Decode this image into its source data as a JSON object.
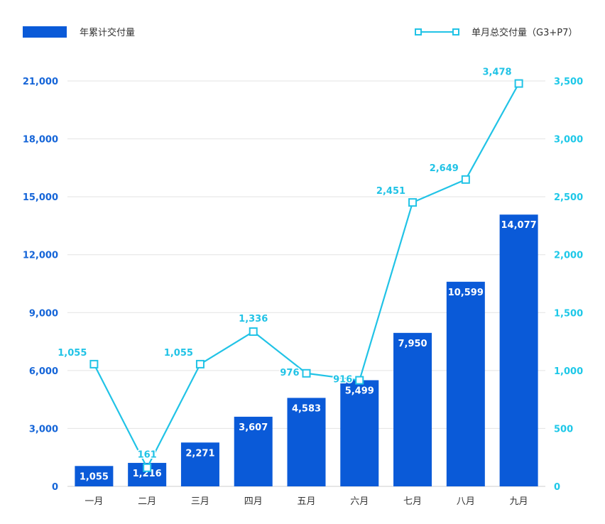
{
  "chart_data": {
    "type": "bar",
    "categories": [
      "一月",
      "二月",
      "三月",
      "四月",
      "五月",
      "六月",
      "七月",
      "八月",
      "九月"
    ],
    "series": [
      {
        "name": "年累计交付量",
        "type": "bar",
        "axis": "left",
        "values": [
          1055,
          1216,
          2271,
          3607,
          4583,
          5499,
          7950,
          10599,
          14077
        ],
        "labels": [
          "1,055",
          "1,216",
          "2,271",
          "3,607",
          "4,583",
          "5,499",
          "7,950",
          "10,599",
          "14,077"
        ]
      },
      {
        "name": "单月总交付量（G3+P7）",
        "type": "line",
        "axis": "right",
        "values": [
          1055,
          161,
          1055,
          1336,
          976,
          916,
          2451,
          2649,
          3478
        ],
        "labels": [
          "1,055",
          "161",
          "1,055",
          "1,336",
          "976",
          "916",
          "2,451",
          "2,649",
          "3,478"
        ]
      }
    ],
    "y_left": {
      "ylim": [
        0,
        21000
      ],
      "ticks": [
        0,
        3000,
        6000,
        9000,
        12000,
        15000,
        18000,
        21000
      ],
      "tick_labels": [
        "0",
        "3,000",
        "6,000",
        "9,000",
        "12,000",
        "15,000",
        "18,000",
        "21,000"
      ]
    },
    "y_right": {
      "ylim": [
        0,
        3500
      ],
      "ticks": [
        0,
        500,
        1000,
        1500,
        2000,
        2500,
        3000,
        3500
      ],
      "tick_labels": [
        "0",
        "500",
        "1,000",
        "1,500",
        "2,000",
        "2,500",
        "3,000",
        "3,500"
      ]
    },
    "grid": true,
    "legend_position": "top",
    "colors": {
      "bar": "#0a5ad8",
      "line": "#21c3e6",
      "left_axis": "#1565d8",
      "right_axis": "#1ec8e8"
    }
  }
}
